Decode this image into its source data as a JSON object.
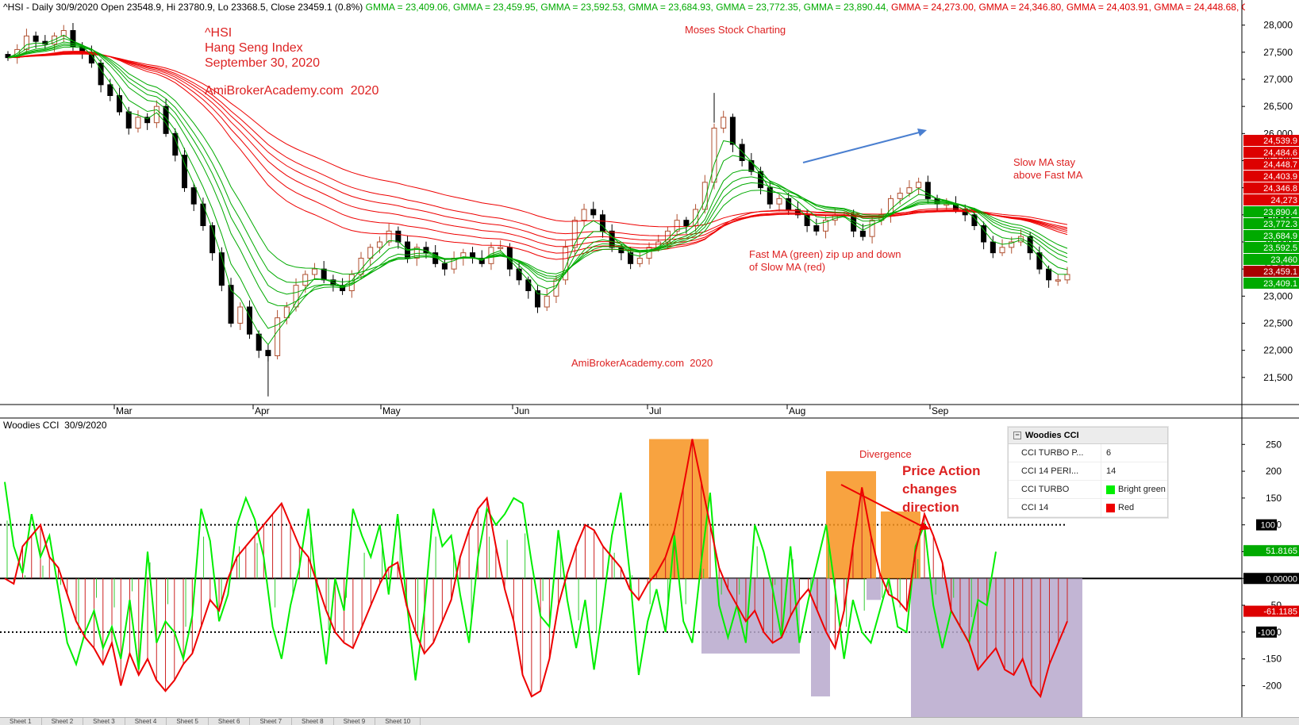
{
  "header": {
    "title": "^HSI - Daily 30/9/2020 Open 23548.9, Hi 23780.9, Lo 23368.5, Close 23459.1 (0.8%)",
    "gmma_values": [
      {
        "label": "GMMA = 23,409.06",
        "color": "#00aa00"
      },
      {
        "label": "GMMA = 23,459.95",
        "color": "#00aa00"
      },
      {
        "label": "GMMA = 23,592.53",
        "color": "#00aa00"
      },
      {
        "label": "GMMA = 23,684.93",
        "color": "#00aa00"
      },
      {
        "label": "GMMA = 23,772.35",
        "color": "#00aa00"
      },
      {
        "label": "GMMA = 23,890.44",
        "color": "#00aa00"
      },
      {
        "label": "GMMA = 24,273.00",
        "color": "#dd0000"
      },
      {
        "label": "GMMA = 24,346.80",
        "color": "#dd0000"
      },
      {
        "label": "GMMA = 24,403.91",
        "color": "#dd0000"
      },
      {
        "label": "GMMA = 24,448.68",
        "color": "#dd0000"
      },
      {
        "label": "GMM",
        "color": "#dd0000"
      }
    ]
  },
  "annotations": {
    "hsi_line1": "^HSI",
    "hsi_line2": "Hang Seng Index",
    "hsi_line3": "September 30, 2020",
    "site_top": "AmiBrokerAcademy.com  2020",
    "moses": "Moses Stock Charting",
    "site_bottom": "AmiBrokerAcademy.com  2020",
    "slow_ma_1": "Slow MA stay",
    "slow_ma_2": "above Fast MA",
    "fast_ma_1": "Fast MA (green) zip up and down",
    "fast_ma_2": "of Slow MA (red)",
    "divergence": "Divergence",
    "price_action_1": "Price Action",
    "price_action_2": "changes",
    "price_action_3": "direction"
  },
  "cci_header": "Woodies CCI  30/9/2020",
  "legend_panel": {
    "title": "Woodies CCI",
    "rows": [
      {
        "key": "CCI TURBO P...",
        "value": "6",
        "swatch": ""
      },
      {
        "key": "CCI 14 PERI...",
        "value": "14",
        "swatch": ""
      },
      {
        "key": "CCI TURBO",
        "value": "Bright green",
        "swatch": "#00ee00"
      },
      {
        "key": "CCI 14",
        "value": "Red",
        "swatch": "#ee0000"
      }
    ]
  },
  "sheet_tabs": [
    "Sheet 1",
    "Sheet 2",
    "Sheet 3",
    "Sheet 4",
    "Sheet 5",
    "Sheet 6",
    "Sheet 7",
    "Sheet 8",
    "Sheet 9",
    "Sheet 10"
  ],
  "colors": {
    "up_candle": "#ffffff",
    "down_candle": "#000000",
    "fast_ma": "#00aa00",
    "slow_ma": "#ee0000",
    "annotation_red": "#dd2222",
    "highlight_orange": "#f7931e",
    "highlight_purple": "#b7a8cc",
    "trend_arrow_blue": "#4a7fd0"
  },
  "chart_data": [
    {
      "type": "candlestick",
      "title": "^HSI - Daily",
      "x": [
        "Mar",
        "Apr",
        "May",
        "Jun",
        "Jul",
        "Aug",
        "Sep"
      ],
      "ylim": [
        21000,
        28200
      ],
      "y_ticks": [
        21500,
        22000,
        22500,
        23000,
        23500,
        24000,
        24500,
        25000,
        25500,
        26000,
        26500,
        27000,
        27500,
        28000
      ],
      "y_tick_labels": [
        "21,500",
        "22,000",
        "22,500",
        "23,000",
        "23,500",
        "24,000",
        "24,500",
        "25,000",
        "25,500",
        "26,000",
        "26,500",
        "27,000",
        "27,500",
        "28,000"
      ],
      "closes": [
        27400,
        27550,
        27800,
        27700,
        27650,
        27800,
        27900,
        27600,
        27500,
        27300,
        26900,
        26700,
        26400,
        26100,
        26300,
        26200,
        26500,
        26000,
        25600,
        25000,
        24700,
        24300,
        23800,
        23200,
        22500,
        22800,
        22300,
        22000,
        21900,
        22600,
        22800,
        23200,
        23400,
        23500,
        23300,
        23200,
        23100,
        23400,
        23700,
        23900,
        24000,
        24200,
        24000,
        23700,
        23900,
        23800,
        23600,
        23500,
        23700,
        23800,
        23700,
        23600,
        23900,
        23900,
        23500,
        23300,
        23100,
        22800,
        23000,
        23300,
        23900,
        24400,
        24600,
        24500,
        24200,
        23900,
        23800,
        23600,
        23700,
        23900,
        24000,
        24200,
        24400,
        24300,
        24600,
        25100,
        26100,
        26300,
        25800,
        25500,
        25300,
        25000,
        24700,
        24800,
        24600,
        24500,
        24300,
        24200,
        24400,
        24500,
        24500,
        24200,
        24100,
        24400,
        24500,
        24800,
        24900,
        25000,
        25100,
        24800,
        24700,
        24700,
        24600,
        24500,
        24300,
        24000,
        23800,
        23900,
        24000,
        24100,
        23800,
        23500,
        23300,
        23300,
        23400
      ],
      "high_point": 26750,
      "low_point": 21150,
      "last_close": 23459.1,
      "gmma_fast_last": [
        23409.06,
        23459.95,
        23592.53,
        23684.93,
        23772.35,
        23890.44
      ],
      "gmma_slow_last": [
        24273.0,
        24346.8,
        24403.91,
        24448.68,
        24484.6,
        24539.9
      ],
      "right_value_labels": [
        {
          "text": "24,539.9",
          "value": 24539.9,
          "color": "#dd0000"
        },
        {
          "text": "24,484.6",
          "value": 24484.6,
          "color": "#dd0000"
        },
        {
          "text": "24,448.7",
          "value": 24448.7,
          "color": "#dd0000"
        },
        {
          "text": "24,403.9",
          "value": 24403.9,
          "color": "#dd0000"
        },
        {
          "text": "24,346.8",
          "value": 24346.8,
          "color": "#dd0000"
        },
        {
          "text": "24,273",
          "value": 24273.0,
          "color": "#dd0000"
        },
        {
          "text": "23,890.4",
          "value": 23890.4,
          "color": "#00aa00"
        },
        {
          "text": "23,772.3",
          "value": 23772.3,
          "color": "#00aa00"
        },
        {
          "text": "23,684.9",
          "value": 23684.9,
          "color": "#00aa00"
        },
        {
          "text": "23,592.5",
          "value": 23592.5,
          "color": "#00aa00"
        },
        {
          "text": "23,460",
          "value": 23460.0,
          "color": "#00aa00"
        },
        {
          "text": "23,459.1",
          "value": 23459.1,
          "color": "#aa0000"
        },
        {
          "text": "23,409.1",
          "value": 23409.1,
          "color": "#00aa00"
        }
      ]
    },
    {
      "type": "line",
      "title": "Woodies CCI",
      "ylim": [
        -260,
        280
      ],
      "y_ticks": [
        250,
        200,
        150,
        100,
        50,
        0,
        -50,
        -100,
        -150,
        -200
      ],
      "y_tick_labels": [
        "250",
        "200",
        "150",
        "100",
        "50",
        "0",
        "-50",
        "-100",
        "-150",
        "-200"
      ],
      "reference_levels": [
        100,
        0,
        -100
      ],
      "series": [
        {
          "name": "CCI TURBO",
          "color": "#00ee00",
          "values": [
            180,
            60,
            10,
            120,
            40,
            80,
            -20,
            -120,
            -160,
            -100,
            -60,
            -130,
            -90,
            -150,
            -40,
            -170,
            50,
            -120,
            -80,
            -100,
            -150,
            -70,
            130,
            70,
            -80,
            -30,
            100,
            150,
            110,
            40,
            -90,
            -150,
            -50,
            20,
            130,
            -30,
            -160,
            0,
            -60,
            130,
            80,
            40,
            100,
            -30,
            120,
            -40,
            -190,
            -60,
            130,
            60,
            80,
            -30,
            -120,
            40,
            130,
            100,
            120,
            150,
            140,
            30,
            -70,
            -90,
            90,
            -40,
            -130,
            -40,
            -170,
            -50,
            80,
            160,
            10,
            -180,
            -80,
            -20,
            -100,
            80,
            -80,
            -120,
            30,
            160,
            -50,
            -110,
            -50,
            -120,
            100,
            50,
            -20,
            -110,
            60,
            -120,
            -40,
            30,
            100,
            -20,
            -150,
            -40,
            -100,
            -120,
            -60,
            0,
            -90,
            -100,
            60,
            100,
            -50,
            -130,
            -60,
            -90,
            -120,
            -40,
            -50,
            50
          ]
        },
        {
          "name": "CCI 14",
          "color": "#ee0000",
          "values": [
            0,
            -10,
            60,
            80,
            100,
            40,
            20,
            -30,
            -80,
            -110,
            -130,
            -160,
            -120,
            -200,
            -140,
            -180,
            -150,
            -190,
            -210,
            -190,
            -160,
            -140,
            -90,
            -40,
            -60,
            0,
            40,
            60,
            80,
            100,
            120,
            140,
            100,
            60,
            40,
            -10,
            -60,
            -100,
            -120,
            -130,
            -90,
            -50,
            -10,
            20,
            30,
            -50,
            -100,
            -140,
            -120,
            -80,
            -40,
            40,
            90,
            130,
            150,
            60,
            -20,
            -80,
            -180,
            -220,
            -210,
            -150,
            -50,
            10,
            60,
            100,
            90,
            60,
            40,
            20,
            -20,
            -40,
            -10,
            10,
            40,
            90,
            170,
            260,
            180,
            100,
            20,
            -20,
            -50,
            -80,
            -60,
            -100,
            -120,
            -110,
            -70,
            -40,
            -20,
            -60,
            -100,
            -130,
            -60,
            60,
            170,
            80,
            10,
            -30,
            -40,
            -60,
            50,
            120,
            80,
            30,
            -60,
            -90,
            -120,
            -170,
            -150,
            -130,
            -170,
            -180,
            -150,
            -200,
            -220,
            -160,
            -120,
            -80
          ]
        }
      ],
      "right_value_labels": [
        {
          "text": "51.8165",
          "value": 51.8165,
          "color": "#00aa00"
        },
        {
          "text": "0.00000",
          "value": 0,
          "color": "#000000"
        },
        {
          "text": "-61.1185",
          "value": -61.1185,
          "color": "#dd0000"
        }
      ]
    }
  ]
}
